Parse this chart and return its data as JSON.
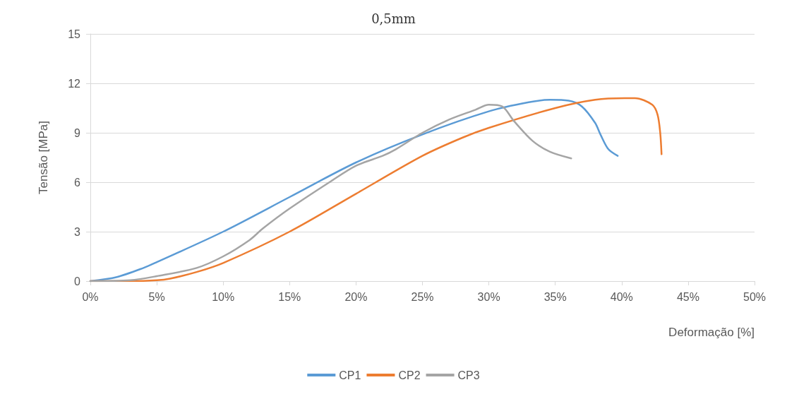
{
  "chart_data": {
    "type": "line",
    "title": "0,5mm",
    "xlabel": "Deformação [%]",
    "ylabel": "Tensão [MPa]",
    "xlim": [
      0,
      50
    ],
    "xticks": [
      {
        "value": 0,
        "label": "0%"
      },
      {
        "value": 5,
        "label": "5%"
      },
      {
        "value": 10,
        "label": "10%"
      },
      {
        "value": 15,
        "label": "15%"
      },
      {
        "value": 20,
        "label": "20%"
      },
      {
        "value": 25,
        "label": "25%"
      },
      {
        "value": 30,
        "label": "30%"
      },
      {
        "value": 35,
        "label": "35%"
      },
      {
        "value": 40,
        "label": "40%"
      },
      {
        "value": 45,
        "label": "45%"
      },
      {
        "value": 50,
        "label": "50%"
      }
    ],
    "ylim": [
      0,
      15
    ],
    "yticks": [
      0,
      3,
      6,
      9,
      12,
      15
    ],
    "grid": "y",
    "legend": "bottom",
    "marker": "none",
    "line_style": "solid",
    "series": [
      {
        "name": "CP1",
        "color": "#5b9bd5",
        "x": [
          0,
          2,
          4,
          5,
          10,
          15,
          20,
          25,
          30,
          33,
          34.6,
          36,
          37,
          38,
          38.4,
          39,
          39.7
        ],
        "values": [
          0,
          0.25,
          0.8,
          1.15,
          3.0,
          5.1,
          7.2,
          8.9,
          10.3,
          10.85,
          11.0,
          10.95,
          10.6,
          9.6,
          8.9,
          8.0,
          7.6
        ]
      },
      {
        "name": "CP2",
        "color": "#ed7d31",
        "x": [
          0,
          3,
          5,
          6,
          8,
          10,
          15,
          20,
          25,
          28,
          30,
          35,
          38,
          40.2,
          41,
          42.3,
          42.7,
          42.9,
          43.0
        ],
        "values": [
          0,
          0,
          0.05,
          0.15,
          0.55,
          1.1,
          3.0,
          5.3,
          7.6,
          8.7,
          9.3,
          10.5,
          11.0,
          11.1,
          11.1,
          10.7,
          10.1,
          9.0,
          7.7
        ]
      },
      {
        "name": "CP3",
        "color": "#a5a5a5",
        "x": [
          0,
          3,
          5,
          8,
          10,
          12,
          13,
          15,
          18,
          20,
          22,
          23,
          25,
          27,
          29,
          30,
          31,
          31.9,
          33.3,
          34.6,
          36.2
        ],
        "values": [
          0,
          0.05,
          0.3,
          0.8,
          1.5,
          2.5,
          3.2,
          4.4,
          6.0,
          7.0,
          7.6,
          8.0,
          9.0,
          9.8,
          10.4,
          10.7,
          10.6,
          9.7,
          8.5,
          7.85,
          7.45
        ]
      }
    ]
  }
}
